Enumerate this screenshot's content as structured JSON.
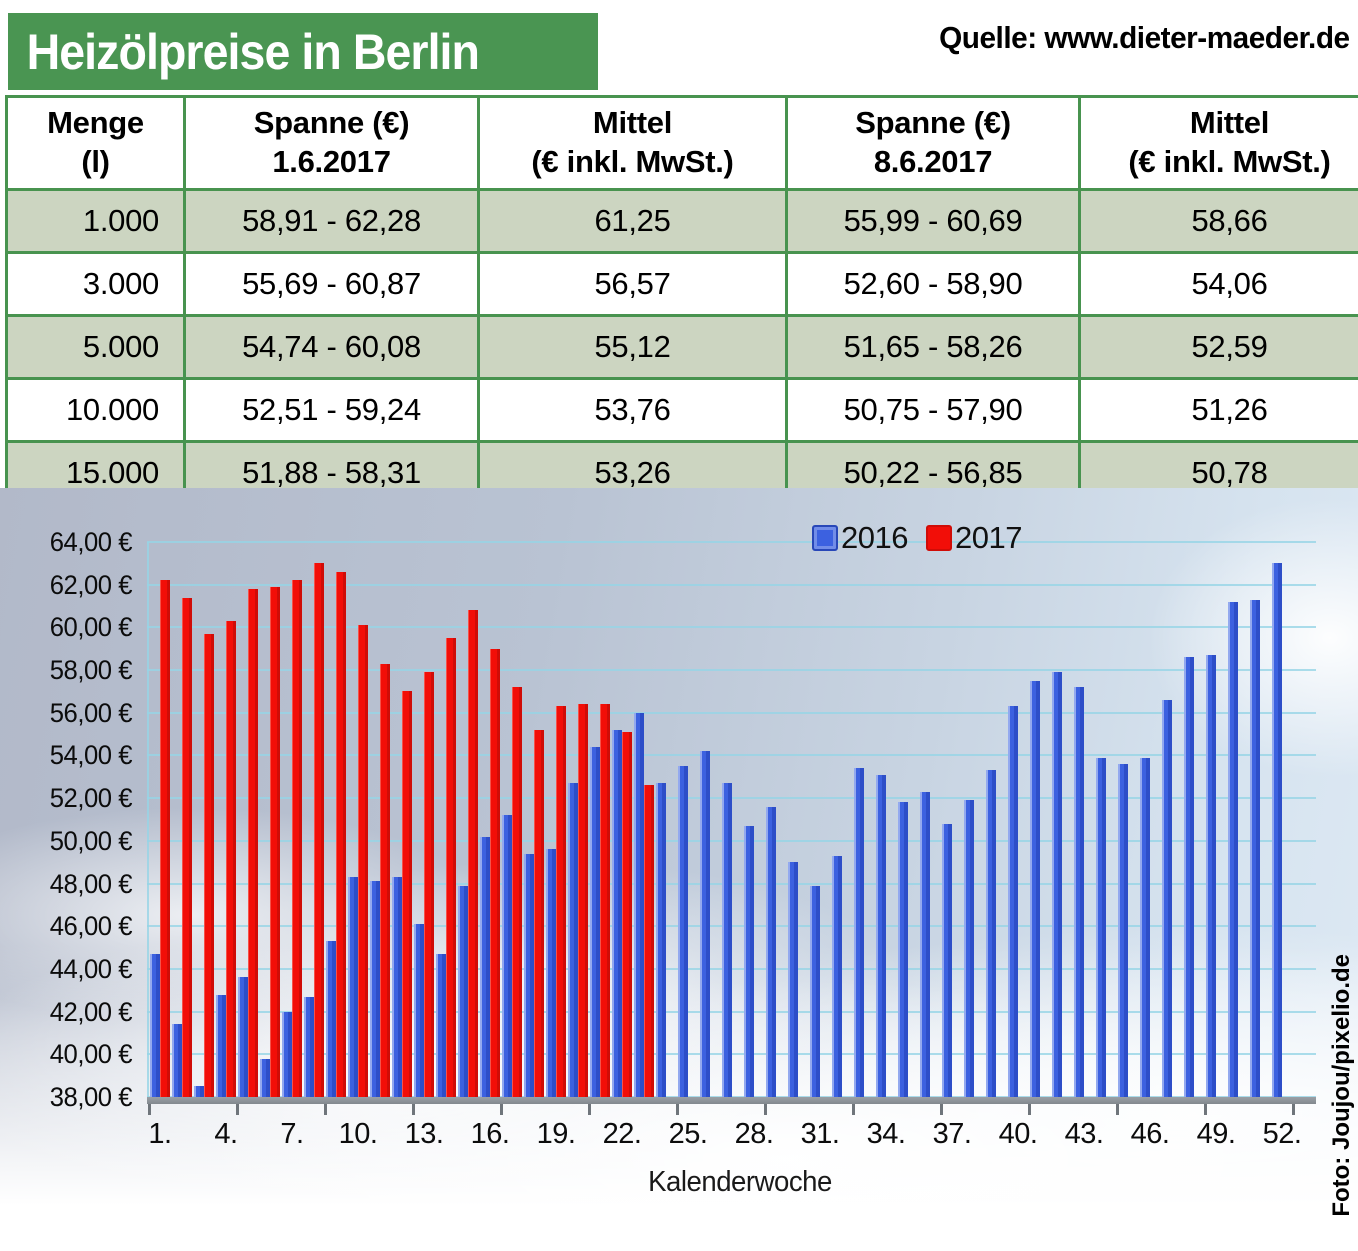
{
  "header": {
    "title": "Heizölpreise in Berlin",
    "source": "Quelle: www.dieter-maeder.de"
  },
  "colors": {
    "header_green": "#4a9552",
    "table_border_green": "#48934f",
    "row_green": "#ccd5c1",
    "bar_blue": "#3c61e0",
    "bar_red": "#f20e08",
    "gridline_cyan": "#96d4e6"
  },
  "table": {
    "columns": [
      "Menge\n(l)",
      "Spanne (€)\n1.6.2017",
      "Mittel\n(€ inkl. MwSt.)",
      "Spanne (€)\n8.6.2017",
      "Mittel\n(€ inkl. MwSt.)"
    ],
    "rows": [
      [
        "1.000",
        "58,91 - 62,28",
        "61,25",
        "55,99 - 60,69",
        "58,66"
      ],
      [
        "3.000",
        "55,69 - 60,87",
        "56,57",
        "52,60 - 58,90",
        "54,06"
      ],
      [
        "5.000",
        "54,74 - 60,08",
        "55,12",
        "51,65 - 58,26",
        "52,59"
      ],
      [
        "10.000",
        "52,51 - 59,24",
        "53,76",
        "50,75 - 57,90",
        "51,26"
      ],
      [
        "15.000",
        "51,88 - 58,31",
        "53,26",
        "50,22 - 56,85",
        "50,78"
      ]
    ]
  },
  "chart_data": {
    "type": "bar",
    "title": "",
    "xlabel": "Kalenderwoche",
    "ylabel": "",
    "ylim": [
      38,
      64
    ],
    "ytick_step": 2,
    "grid": true,
    "legend_position": "top-center",
    "ytick_labels": [
      "64,00 €",
      "62,00 €",
      "60,00 €",
      "58,00 €",
      "56,00 €",
      "54,00 €",
      "52,00 €",
      "50,00 €",
      "48,00 €",
      "46,00 €",
      "44,00 €",
      "42,00 €",
      "40,00 €",
      "38,00 €"
    ],
    "xtick_labels": [
      "1.",
      "4.",
      "7.",
      "10.",
      "13.",
      "16.",
      "19.",
      "22.",
      "25.",
      "28.",
      "31.",
      "34.",
      "37.",
      "40.",
      "43.",
      "46.",
      "49.",
      "52."
    ],
    "categories_weeks": [
      1,
      2,
      3,
      4,
      5,
      6,
      7,
      8,
      9,
      10,
      11,
      12,
      13,
      14,
      15,
      16,
      17,
      18,
      19,
      20,
      21,
      22,
      23,
      24,
      25,
      26,
      27,
      28,
      29,
      30,
      31,
      32,
      33,
      34,
      35,
      36,
      37,
      38,
      39,
      40,
      41,
      42,
      43,
      44,
      45,
      46,
      47,
      48,
      49,
      50,
      51,
      52
    ],
    "series": [
      {
        "name": "2016",
        "color": "#3c61e0",
        "values": [
          44.7,
          41.4,
          38.5,
          42.8,
          43.6,
          39.8,
          42.0,
          42.7,
          45.3,
          48.3,
          48.1,
          48.3,
          46.1,
          44.7,
          47.9,
          50.2,
          51.2,
          49.4,
          49.6,
          52.7,
          54.4,
          55.2,
          56.0,
          52.7,
          53.5,
          54.2,
          52.7,
          50.7,
          51.6,
          49.0,
          47.9,
          49.3,
          53.4,
          53.1,
          51.8,
          52.3,
          50.8,
          51.9,
          53.3,
          56.3,
          57.5,
          57.9,
          57.2,
          53.9,
          53.6,
          53.9,
          56.6,
          58.6,
          58.7,
          61.2,
          61.3,
          63.0
        ]
      },
      {
        "name": "2017",
        "color": "#f20e08",
        "values": [
          62.2,
          61.4,
          59.7,
          60.3,
          61.8,
          61.9,
          62.2,
          63.0,
          62.6,
          60.1,
          58.3,
          57.0,
          57.9,
          59.5,
          60.8,
          59.0,
          57.2,
          55.2,
          56.3,
          56.4,
          56.4,
          55.1,
          52.6
        ]
      }
    ]
  },
  "photo_credit": "Foto: Joujou/pixelio.de"
}
